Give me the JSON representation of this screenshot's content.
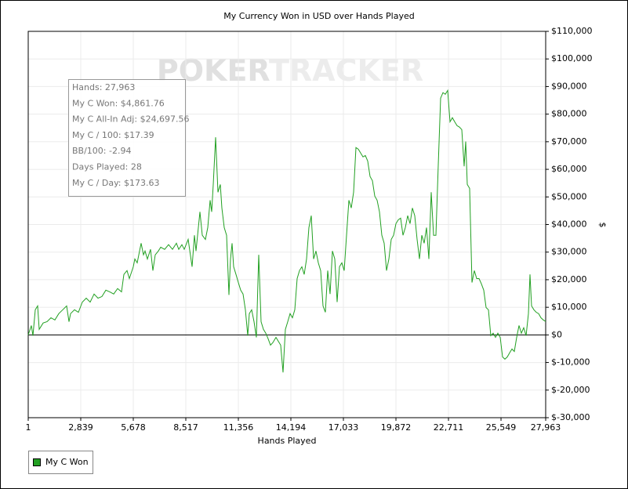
{
  "chart_data": {
    "type": "line",
    "title": "My Currency Won in USD over Hands Played",
    "xlabel": "Hands Played",
    "ylabel": "$",
    "watermark": [
      "POKER",
      "TRACKER"
    ],
    "info_box": [
      "Hands: 27,963",
      "My C Won: $4,861.76",
      "My C All-In Adj: $24,697.56",
      "My C / 100: $17.39",
      "BB/100: -2.94",
      "Days Played: 28",
      "My C / Day: $173.63"
    ],
    "legend": "bottom-left",
    "grid": true,
    "xlim": [
      1,
      27963
    ],
    "xticks": [
      1,
      {
        "value": 2839,
        "label": "2,839"
      },
      {
        "value": 5678,
        "label": "5,678"
      },
      {
        "value": 8517,
        "label": "8,517"
      },
      {
        "value": 11356,
        "label": "11,356"
      },
      {
        "value": 14194,
        "label": "14,194"
      },
      {
        "value": 17033,
        "label": "17,033"
      },
      {
        "value": 19872,
        "label": "19,872"
      },
      {
        "value": 22711,
        "label": "22,711"
      },
      {
        "value": 25549,
        "label": "25,549"
      },
      {
        "value": 27963,
        "label": "27,963"
      }
    ],
    "ylim": [
      -30000,
      110000
    ],
    "yticks": [
      {
        "value": -30000,
        "label": "$-30,000"
      },
      {
        "value": -20000,
        "label": "$-20,000"
      },
      {
        "value": -10000,
        "label": "$-10,000"
      },
      {
        "value": 0,
        "label": "$0"
      },
      {
        "value": 10000,
        "label": "$10,000"
      },
      {
        "value": 20000,
        "label": "$20,000"
      },
      {
        "value": 30000,
        "label": "$30,000"
      },
      {
        "value": 40000,
        "label": "$40,000"
      },
      {
        "value": 50000,
        "label": "$50,000"
      },
      {
        "value": 60000,
        "label": "$60,000"
      },
      {
        "value": 70000,
        "label": "$70,000"
      },
      {
        "value": 80000,
        "label": "$80,000"
      },
      {
        "value": 90000,
        "label": "$90,000"
      },
      {
        "value": 100000,
        "label": "$100,000"
      },
      {
        "value": 110000,
        "label": "$110,000"
      }
    ],
    "x": [
      1,
      169,
      254,
      381,
      508,
      593,
      805,
      1017,
      1229,
      1441,
      1652,
      1864,
      2076,
      2203,
      2288,
      2500,
      2712,
      2924,
      3135,
      3347,
      3559,
      3771,
      3983,
      4195,
      4406,
      4618,
      4830,
      5042,
      5169,
      5338,
      5466,
      5677,
      5762,
      5889,
      6101,
      6228,
      6313,
      6440,
      6610,
      6737,
      6864,
      7033,
      7160,
      7372,
      7584,
      7796,
      8008,
      8135,
      8304,
      8432,
      8643,
      8855,
      8982,
      9067,
      9279,
      9406,
      9575,
      9702,
      9829,
      9914,
      9999,
      10126,
      10253,
      10380,
      10465,
      10592,
      10719,
      10846,
      10931,
      11016,
      11101,
      11228,
      11355,
      11482,
      11609,
      11736,
      11864,
      11948,
      12075,
      12203,
      12330,
      12457,
      12584,
      12711,
      12838,
      12965,
      13092,
      13219,
      13389,
      13516,
      13643,
      13770,
      13897,
      14024,
      14152,
      14279,
      14406,
      14533,
      14660,
      14787,
      14914,
      15041,
      15168,
      15296,
      15423,
      15550,
      15677,
      15804,
      15931,
      16058,
      16185,
      16312,
      16440,
      16567,
      16694,
      16821,
      16948,
      17075,
      17202,
      17329,
      17456,
      17584,
      17711,
      17838,
      17965,
      18092,
      18219,
      18346,
      18473,
      18600,
      18728,
      18855,
      18982,
      19109,
      19236,
      19363,
      19490,
      19617,
      19744,
      19872,
      19999,
      20126,
      20253,
      20380,
      20507,
      20634,
      20761,
      20888,
      21016,
      21143,
      21270,
      21397,
      21524,
      21651,
      21778,
      21905,
      22032,
      22160,
      22287,
      22414,
      22541,
      22668,
      22795,
      22922,
      23049,
      23176,
      23304,
      23431,
      23558,
      23642,
      23727,
      23854,
      23981,
      24108,
      24235,
      24362,
      24490,
      24617,
      24744,
      24871,
      24998,
      25125,
      25252,
      25379,
      25506,
      25633,
      25761,
      25888,
      26015,
      26142,
      26269,
      26396,
      26523,
      26650,
      26777,
      26905,
      27032,
      27116,
      27201,
      27328,
      27455,
      27582,
      27709,
      27836,
      27963
    ],
    "series": [
      {
        "name": "My C Won",
        "color": "#22a022",
        "values": [
          0,
          3400,
          -300,
          9100,
          10500,
          2000,
          4300,
          4800,
          6200,
          5400,
          7700,
          9100,
          10500,
          4800,
          7700,
          9100,
          8200,
          11900,
          13300,
          11900,
          14800,
          13300,
          13900,
          16200,
          15600,
          14800,
          16800,
          15600,
          21900,
          23300,
          20400,
          24700,
          27500,
          26100,
          33200,
          29000,
          30400,
          27500,
          31000,
          23300,
          29000,
          30400,
          31800,
          31000,
          32700,
          31000,
          33200,
          31000,
          32700,
          31000,
          34600,
          24700,
          36100,
          30400,
          44600,
          36100,
          34600,
          38900,
          48800,
          44600,
          54500,
          71600,
          51700,
          54500,
          46000,
          38900,
          36100,
          14500,
          27500,
          33200,
          24700,
          21900,
          19000,
          16200,
          14800,
          9100,
          -300,
          7700,
          9100,
          4800,
          -900,
          29000,
          4800,
          2000,
          600,
          -1400,
          -3700,
          -2800,
          -900,
          -2300,
          -3700,
          -13600,
          2000,
          4800,
          7700,
          6200,
          9100,
          20400,
          23300,
          24700,
          21900,
          27500,
          38900,
          43200,
          27500,
          30400,
          26100,
          23300,
          10500,
          8200,
          23300,
          14800,
          30400,
          27500,
          11900,
          24700,
          26100,
          23300,
          36100,
          48800,
          46000,
          51700,
          67900,
          67300,
          65900,
          64500,
          65000,
          63000,
          57400,
          55900,
          50300,
          48800,
          44600,
          36100,
          33200,
          23300,
          27500,
          34600,
          36100,
          40300,
          41700,
          42300,
          36100,
          38900,
          43200,
          40300,
          46000,
          43200,
          34600,
          27500,
          36100,
          33200,
          38900,
          27500,
          51700,
          36100,
          36100,
          61600,
          85800,
          87800,
          87200,
          88600,
          77200,
          78700,
          77200,
          75800,
          75300,
          74400,
          61100,
          70100,
          54500,
          53100,
          19000,
          23300,
          20400,
          20400,
          18500,
          16200,
          9900,
          9100,
          -300,
          600,
          -900,
          600,
          -900,
          -8000,
          -8800,
          -8000,
          -6500,
          -5100,
          -6000,
          -900,
          3400,
          600,
          2600,
          -300,
          7700,
          21900,
          10500,
          9100,
          8200,
          7700,
          6200,
          5400,
          4861.76
        ]
      }
    ]
  }
}
